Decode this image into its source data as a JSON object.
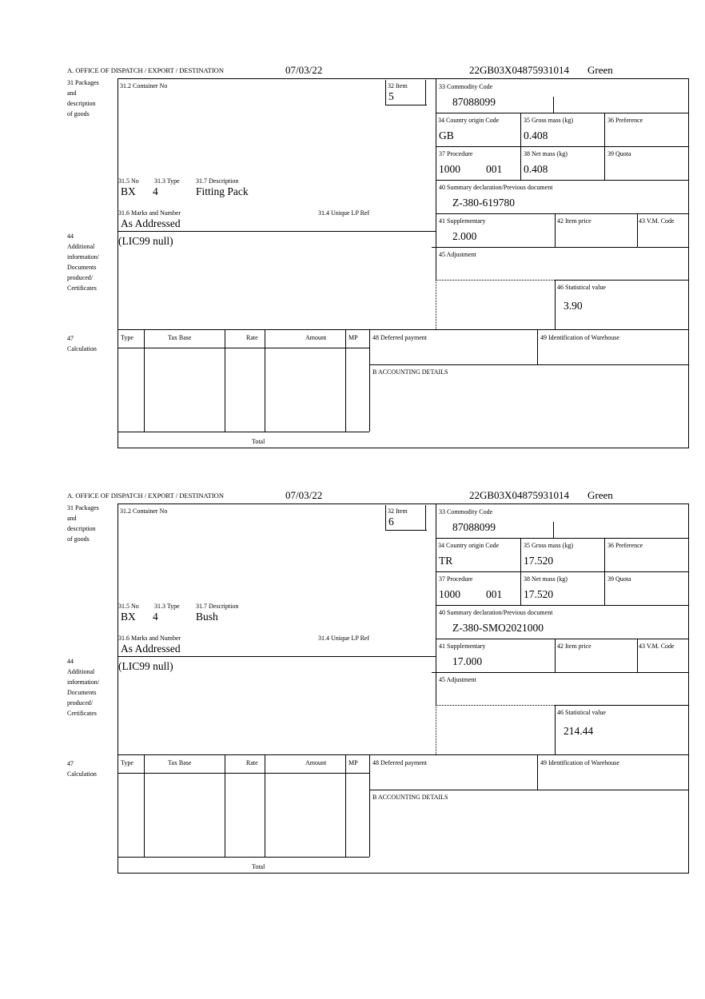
{
  "labels": {
    "office": "A.  OFFICE OF DISPATCH / EXPORT / DESTINATION",
    "box31": [
      "31 Packages",
      "and",
      "description",
      "of goods"
    ],
    "container_no": "31.2 Container No",
    "item": "32 Item",
    "no": "31.5 No",
    "type": "31.3 Type",
    "description": "31.7 Description",
    "marks": "31.6 Marks and Number",
    "unique_lp": "31.4 Unique LP Ref",
    "box44": [
      "44",
      "Additional",
      "information/",
      "Documents",
      "produced/",
      "Certificates"
    ],
    "box47": [
      "47",
      "Calculation"
    ],
    "commodity_code": "33 Commodity Code",
    "country_origin": "34 Country origin Code",
    "gross_mass": "35 Gross mass (kg)",
    "preference": "36 Preference",
    "procedure": "37 Procedure",
    "net_mass": "38 Net mass (kg)",
    "quota": "39 Quota",
    "summary_decl": "40 Summary declaration/Previous document",
    "supplementary": "41 Supplementary",
    "item_price": "42 Item price",
    "vm_code": "43 V.M. Code",
    "adjustment": "45 Adjustment",
    "stat_value": "46 Statistical value",
    "calc_cols": [
      "Type",
      "Tax Base",
      "Rate",
      "Amount",
      "MP"
    ],
    "total": "Total",
    "deferred": "48 Deferred payment",
    "warehouse": "49 Identification of Warehouse",
    "accounting": "B ACCOUNTING DETAILS"
  },
  "items": [
    {
      "date": "07/03/22",
      "reference": "22GB03X04875931014",
      "route": "Green",
      "item_no": "5",
      "package_kind": "BX",
      "package_count": "4",
      "description": "Fitting Pack",
      "marks": "As Addressed",
      "additional_info": "(LIC99 null)",
      "commodity_code": "87088099",
      "country_origin": "GB",
      "gross_mass": "0.408",
      "procedure": "1000",
      "procedure_add": "001",
      "net_mass": "0.408",
      "summary_decl": "Z-380-619780",
      "supplementary": "2.000",
      "stat_value": "3.90"
    },
    {
      "date": "07/03/22",
      "reference": "22GB03X04875931014",
      "route": "Green",
      "item_no": "6",
      "package_kind": "BX",
      "package_count": "4",
      "description": "Bush",
      "marks": "As Addressed",
      "additional_info": "(LIC99 null)",
      "commodity_code": "87088099",
      "country_origin": "TR",
      "gross_mass": "17.520",
      "procedure": "1000",
      "procedure_add": "001",
      "net_mass": "17.520",
      "summary_decl": "Z-380-SMO2021000",
      "supplementary": "17.000",
      "stat_value": "214.44"
    }
  ]
}
